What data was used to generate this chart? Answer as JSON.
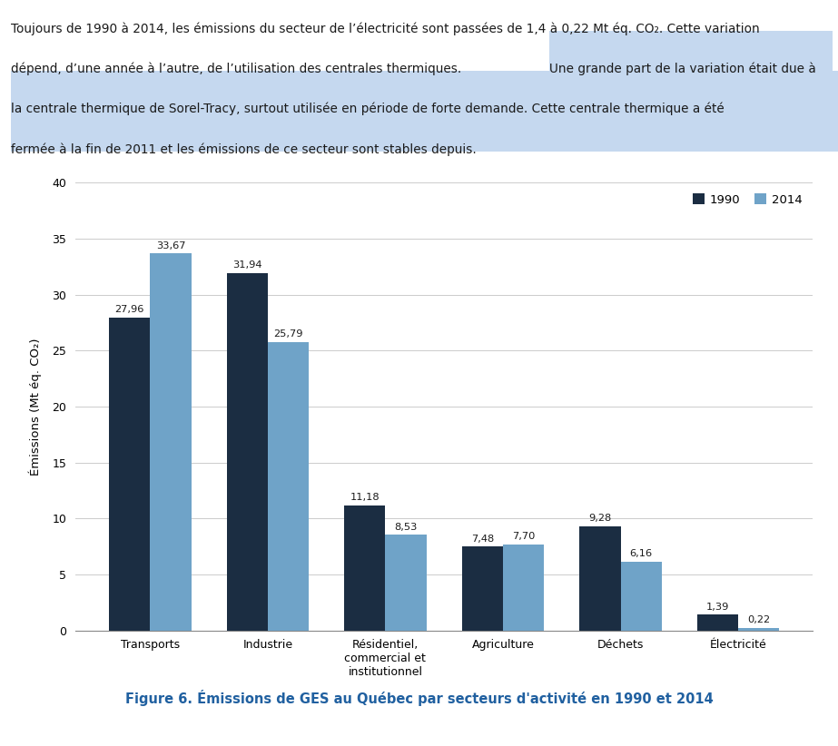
{
  "categories": [
    "Transports",
    "Industrie",
    "Résidentiel,\ncommercial et\ninstitutionnel",
    "Agriculture",
    "Déchets",
    "Électricité"
  ],
  "values_1990": [
    27.96,
    31.94,
    11.18,
    7.48,
    9.28,
    1.39
  ],
  "values_2014": [
    33.67,
    25.79,
    8.53,
    7.7,
    6.16,
    0.22
  ],
  "color_1990": "#1b2d42",
  "color_2014": "#6fa3c8",
  "ylabel": "Émissions (Mt éq. CO₂)",
  "ylim": [
    0,
    40
  ],
  "yticks": [
    0,
    5,
    10,
    15,
    20,
    25,
    30,
    35,
    40
  ],
  "legend_1990": "1990",
  "legend_2014": "2014",
  "figure_caption": "Figure 6. Émissions de GES au Québec par secteurs d'activité en 1990 et 2014",
  "line1": "Toujours de 1990 à 2014, les émissions du secteur de l’électricité sont passées de 1,4 à 0,22 Mt éq. CO₂. Cette variation",
  "line2_normal": "dépend, d’une année à l’autre, de l’utilisation des centrales thermiques. ",
  "line2_highlight": "Une grande part de la variation était due à",
  "line3": "la centrale thermique de Sorel-Tracy, surtout utilisée en période de forte demande. Cette centrale thermique a été",
  "line4": "fermée à la fin de 2011 et les émissions de ce secteur sont stables depuis.",
  "highlight_color": "#c5d8ef",
  "text_color": "#1a1a1a",
  "bg_color": "#ffffff",
  "bar_width": 0.35,
  "caption_color": "#2060a0"
}
